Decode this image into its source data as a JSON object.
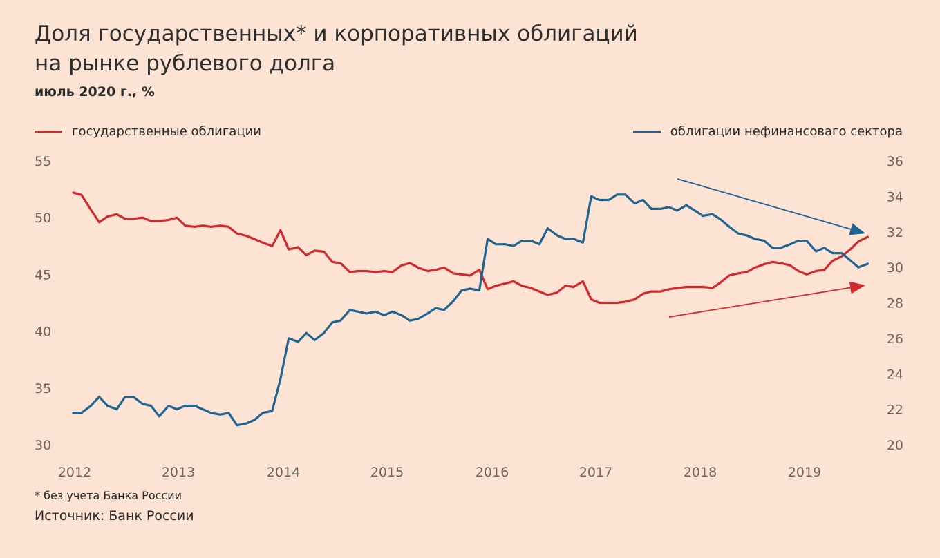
{
  "title_line1": "Доля государственных* и корпоративных облигаций",
  "title_line2": "на рынке рублевого долга",
  "subtitle": "июль 2020 г., %",
  "footnote": "* без учета Банка России",
  "source": "Источник: Банк России",
  "colors": {
    "gov": "#d2292c",
    "corp": "#1f6492",
    "axis_text": "#6d6560",
    "background": "#fde3d3"
  },
  "chart_data": {
    "type": "line",
    "x_tick_labels": [
      "2012",
      "2013",
      "2014",
      "2015",
      "2016",
      "2017",
      "2018",
      "2019"
    ],
    "x_range": [
      2012.0,
      2019.7
    ],
    "left_axis": {
      "ylim": [
        30,
        55
      ],
      "ticks": [
        30,
        35,
        40,
        45,
        50,
        55
      ]
    },
    "right_axis": {
      "ylim": [
        20,
        36
      ],
      "ticks": [
        20,
        22,
        24,
        26,
        28,
        30,
        32,
        34,
        36
      ]
    },
    "grid": false,
    "series": [
      {
        "name": "государственные облигации",
        "axis": "left",
        "x": [
          2012.0,
          2012.08,
          2012.17,
          2012.25,
          2012.33,
          2012.42,
          2012.5,
          2012.58,
          2012.67,
          2012.75,
          2012.83,
          2012.92,
          2013.0,
          2013.08,
          2013.17,
          2013.25,
          2013.33,
          2013.42,
          2013.5,
          2013.58,
          2013.67,
          2013.75,
          2013.83,
          2013.92,
          2014.0,
          2014.08,
          2014.17,
          2014.25,
          2014.33,
          2014.42,
          2014.5,
          2014.58,
          2014.67,
          2014.75,
          2014.83,
          2014.92,
          2015.0,
          2015.08,
          2015.17,
          2015.25,
          2015.33,
          2015.42,
          2015.5,
          2015.58,
          2015.67,
          2015.75,
          2015.83,
          2015.92,
          2016.0,
          2016.08,
          2016.17,
          2016.25,
          2016.33,
          2016.42,
          2016.5,
          2016.58,
          2016.67,
          2016.75,
          2016.83,
          2016.92,
          2017.0,
          2017.08,
          2017.17,
          2017.25,
          2017.33,
          2017.42,
          2017.5,
          2017.58,
          2017.67,
          2017.75,
          2017.83,
          2017.92,
          2018.0,
          2018.08,
          2018.17,
          2018.25,
          2018.33,
          2018.42,
          2018.5,
          2018.58,
          2018.67,
          2018.75,
          2018.83,
          2018.92,
          2019.0,
          2019.08,
          2019.17,
          2019.25,
          2019.33,
          2019.42,
          2019.5,
          2019.58,
          2019.67
        ],
        "values": [
          52.2,
          52.0,
          50.7,
          49.6,
          50.1,
          50.3,
          49.9,
          49.9,
          50.0,
          49.7,
          49.7,
          49.8,
          50.0,
          49.3,
          49.2,
          49.3,
          49.2,
          49.3,
          49.2,
          48.6,
          48.4,
          48.1,
          47.8,
          47.5,
          48.9,
          47.2,
          47.4,
          46.7,
          47.1,
          47.0,
          46.1,
          46.0,
          45.2,
          45.3,
          45.3,
          45.2,
          45.3,
          45.2,
          45.8,
          46.0,
          45.6,
          45.3,
          45.4,
          45.6,
          45.1,
          45.0,
          44.9,
          45.4,
          43.7,
          44.0,
          44.2,
          44.4,
          44.0,
          43.8,
          43.5,
          43.2,
          43.4,
          44.0,
          43.9,
          44.4,
          42.8,
          42.5,
          42.5,
          42.5,
          42.6,
          42.8,
          43.3,
          43.5,
          43.5,
          43.7,
          43.8,
          43.9,
          43.9,
          43.9,
          43.8,
          44.3,
          44.9,
          45.1,
          45.2,
          45.6,
          45.9,
          46.1,
          46.0,
          45.8,
          45.3,
          45.0,
          45.3,
          45.4,
          46.2,
          46.6,
          47.2,
          47.9,
          48.3
        ]
      },
      {
        "name": "облигации нефинансоваго сектора",
        "axis": "right",
        "x": [
          2012.0,
          2012.08,
          2012.17,
          2012.25,
          2012.33,
          2012.42,
          2012.5,
          2012.58,
          2012.67,
          2012.75,
          2012.83,
          2012.92,
          2013.0,
          2013.08,
          2013.17,
          2013.25,
          2013.33,
          2013.42,
          2013.5,
          2013.58,
          2013.67,
          2013.75,
          2013.83,
          2013.92,
          2014.0,
          2014.08,
          2014.17,
          2014.25,
          2014.33,
          2014.42,
          2014.5,
          2014.58,
          2014.67,
          2014.75,
          2014.83,
          2014.92,
          2015.0,
          2015.08,
          2015.17,
          2015.25,
          2015.33,
          2015.42,
          2015.5,
          2015.58,
          2015.67,
          2015.75,
          2015.83,
          2015.92,
          2016.0,
          2016.08,
          2016.17,
          2016.25,
          2016.33,
          2016.42,
          2016.5,
          2016.58,
          2016.67,
          2016.75,
          2016.83,
          2016.92,
          2017.0,
          2017.08,
          2017.17,
          2017.25,
          2017.33,
          2017.42,
          2017.5,
          2017.58,
          2017.67,
          2017.75,
          2017.83,
          2017.92,
          2018.0,
          2018.08,
          2018.17,
          2018.25,
          2018.33,
          2018.42,
          2018.5,
          2018.58,
          2018.67,
          2018.75,
          2018.83,
          2018.92,
          2019.0,
          2019.08,
          2019.17,
          2019.25,
          2019.33,
          2019.42,
          2019.5,
          2019.58,
          2019.67
        ],
        "values": [
          21.8,
          21.8,
          22.2,
          22.7,
          22.2,
          22.0,
          22.7,
          22.7,
          22.3,
          22.2,
          21.6,
          22.2,
          22.0,
          22.2,
          22.2,
          22.0,
          21.8,
          21.7,
          21.8,
          21.1,
          21.2,
          21.4,
          21.8,
          21.9,
          23.7,
          26.0,
          25.8,
          26.3,
          25.9,
          26.3,
          26.9,
          27.0,
          27.6,
          27.5,
          27.4,
          27.5,
          27.3,
          27.5,
          27.3,
          27.0,
          27.1,
          27.4,
          27.7,
          27.6,
          28.1,
          28.7,
          28.8,
          28.7,
          31.6,
          31.3,
          31.3,
          31.2,
          31.5,
          31.5,
          31.3,
          32.2,
          31.8,
          31.6,
          31.6,
          31.4,
          34.0,
          33.8,
          33.8,
          34.1,
          34.1,
          33.6,
          33.8,
          33.3,
          33.3,
          33.4,
          33.2,
          33.5,
          33.2,
          32.9,
          33.0,
          32.7,
          32.3,
          31.9,
          31.8,
          31.6,
          31.5,
          31.1,
          31.1,
          31.3,
          31.5,
          31.5,
          30.9,
          31.1,
          30.8,
          30.8,
          30.4,
          30.0,
          30.2
        ]
      }
    ],
    "annotations": [
      {
        "type": "arrow",
        "series": "облигации нефинансоваго сектора",
        "meaning": "downward trend"
      },
      {
        "type": "arrow",
        "series": "государственные облигации",
        "meaning": "upward trend"
      }
    ]
  }
}
